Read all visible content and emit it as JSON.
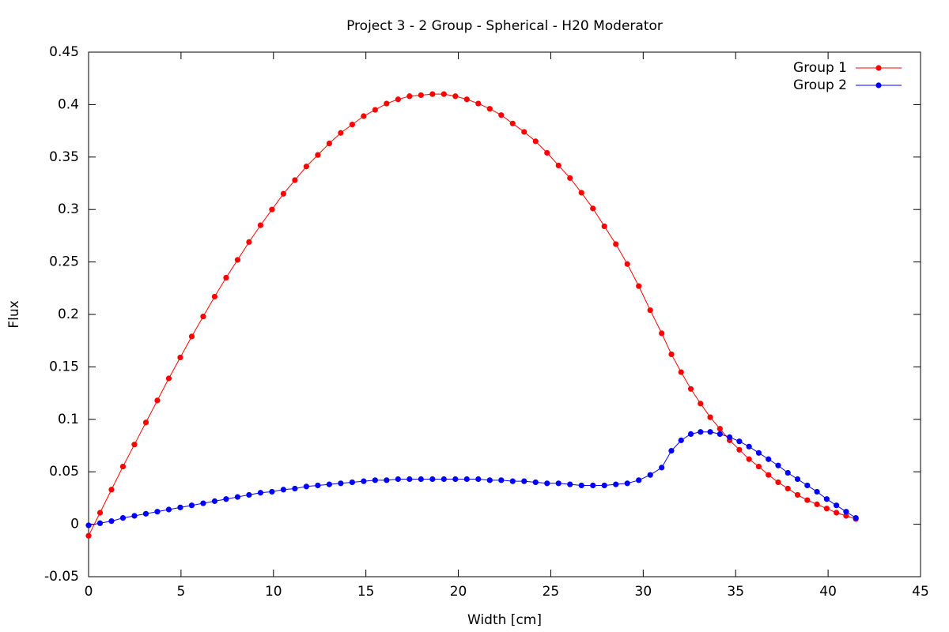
{
  "chart_data": {
    "type": "line",
    "title": "Project 3 - 2 Group - Spherical - H20 Moderator",
    "x_label": "Width [cm]",
    "y_label": "Flux",
    "x": [
      0,
      0.62,
      1.24,
      1.86,
      2.48,
      3.1,
      3.72,
      4.34,
      4.96,
      5.58,
      6.2,
      6.82,
      7.44,
      8.06,
      8.68,
      9.3,
      9.92,
      10.54,
      11.16,
      11.78,
      12.4,
      13.02,
      13.64,
      14.26,
      14.88,
      15.5,
      16.12,
      16.74,
      17.36,
      17.98,
      18.6,
      19.22,
      19.84,
      20.46,
      21.08,
      21.7,
      22.32,
      22.94,
      23.56,
      24.18,
      24.8,
      25.42,
      26.04,
      26.66,
      27.28,
      27.9,
      28.52,
      29.14,
      29.76,
      30.38,
      31,
      31.525,
      32.05,
      32.575,
      33.1,
      33.625,
      34.15,
      34.675,
      35.2,
      35.725,
      36.25,
      36.775,
      37.3,
      37.825,
      38.35,
      38.875,
      39.4,
      39.925,
      40.45,
      40.975,
      41.5
    ],
    "series": [
      {
        "name": "Group 1",
        "color": "#ff0000",
        "values": [
          -0.011,
          0.011,
          0.033,
          0.055,
          0.076,
          0.097,
          0.118,
          0.139,
          0.159,
          0.179,
          0.198,
          0.217,
          0.235,
          0.252,
          0.269,
          0.285,
          0.3,
          0.315,
          0.328,
          0.341,
          0.352,
          0.363,
          0.373,
          0.381,
          0.389,
          0.395,
          0.401,
          0.405,
          0.408,
          0.409,
          0.41,
          0.41,
          0.408,
          0.405,
          0.401,
          0.396,
          0.39,
          0.382,
          0.374,
          0.365,
          0.354,
          0.342,
          0.33,
          0.316,
          0.301,
          0.284,
          0.267,
          0.248,
          0.227,
          0.204,
          0.182,
          0.162,
          0.145,
          0.129,
          0.115,
          0.102,
          0.091,
          0.08,
          0.071,
          0.062,
          0.055,
          0.047,
          0.04,
          0.034,
          0.028,
          0.023,
          0.019,
          0.015,
          0.011,
          0.008,
          0.005
        ]
      },
      {
        "name": "Group 2",
        "color": "#0000ff",
        "values": [
          -0.001,
          0.001,
          0.003,
          0.006,
          0.008,
          0.01,
          0.012,
          0.014,
          0.016,
          0.018,
          0.02,
          0.022,
          0.024,
          0.026,
          0.028,
          0.03,
          0.031,
          0.033,
          0.034,
          0.036,
          0.037,
          0.038,
          0.039,
          0.04,
          0.041,
          0.042,
          0.042,
          0.043,
          0.043,
          0.043,
          0.043,
          0.043,
          0.043,
          0.043,
          0.043,
          0.042,
          0.042,
          0.041,
          0.041,
          0.04,
          0.039,
          0.039,
          0.038,
          0.037,
          0.037,
          0.037,
          0.038,
          0.039,
          0.042,
          0.047,
          0.054,
          0.07,
          0.08,
          0.086,
          0.088,
          0.088,
          0.086,
          0.083,
          0.079,
          0.074,
          0.068,
          0.062,
          0.056,
          0.049,
          0.043,
          0.037,
          0.031,
          0.024,
          0.018,
          0.012,
          0.006
        ]
      }
    ],
    "xlim": [
      0,
      45
    ],
    "xticks": [
      0,
      5,
      10,
      15,
      20,
      25,
      30,
      35,
      40,
      45
    ],
    "ylim": [
      -0.05,
      0.45
    ],
    "yticks": [
      -0.05,
      0,
      0.05,
      0.1,
      0.15,
      0.2,
      0.25,
      0.3,
      0.35,
      0.4,
      0.45
    ],
    "legend": "top-right"
  }
}
